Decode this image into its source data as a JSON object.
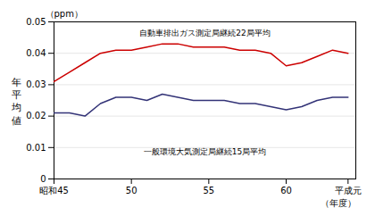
{
  "chart_data": {
    "type": "line",
    "xlabel": "（年度）",
    "ylabel": "年平均値",
    "annotations": [
      "（ppm）"
    ],
    "x": [
      45,
      46,
      47,
      48,
      49,
      50,
      51,
      52,
      53,
      54,
      55,
      56,
      57,
      58,
      59,
      60,
      61,
      62,
      63,
      64
    ],
    "series": [
      {
        "name": "自動車排出ガス測定局継続22局平均",
        "color": "#cc0000",
        "values": [
          0.031,
          0.034,
          0.037,
          0.04,
          0.041,
          0.041,
          0.042,
          0.043,
          0.043,
          0.042,
          0.042,
          0.042,
          0.041,
          0.041,
          0.04,
          0.036,
          0.037,
          0.039,
          0.041,
          0.04
        ]
      },
      {
        "name": "一般環境大気測定局継続15局平均",
        "color": "#333377",
        "values": [
          0.021,
          0.021,
          0.02,
          0.024,
          0.026,
          0.026,
          0.025,
          0.027,
          0.026,
          0.025,
          0.025,
          0.025,
          0.024,
          0.024,
          0.023,
          0.022,
          0.023,
          0.025,
          0.026,
          0.026
        ]
      }
    ],
    "xlim": [
      45,
      64.5
    ],
    "ylim": [
      0,
      0.05
    ],
    "xticks": [
      {
        "value": 45,
        "label": "昭和45"
      },
      50,
      55,
      60,
      {
        "value": 64,
        "label": "平成元"
      }
    ],
    "yticks": [
      0,
      0.01,
      0.02,
      0.03,
      0.04,
      0.05
    ],
    "grid": true
  }
}
